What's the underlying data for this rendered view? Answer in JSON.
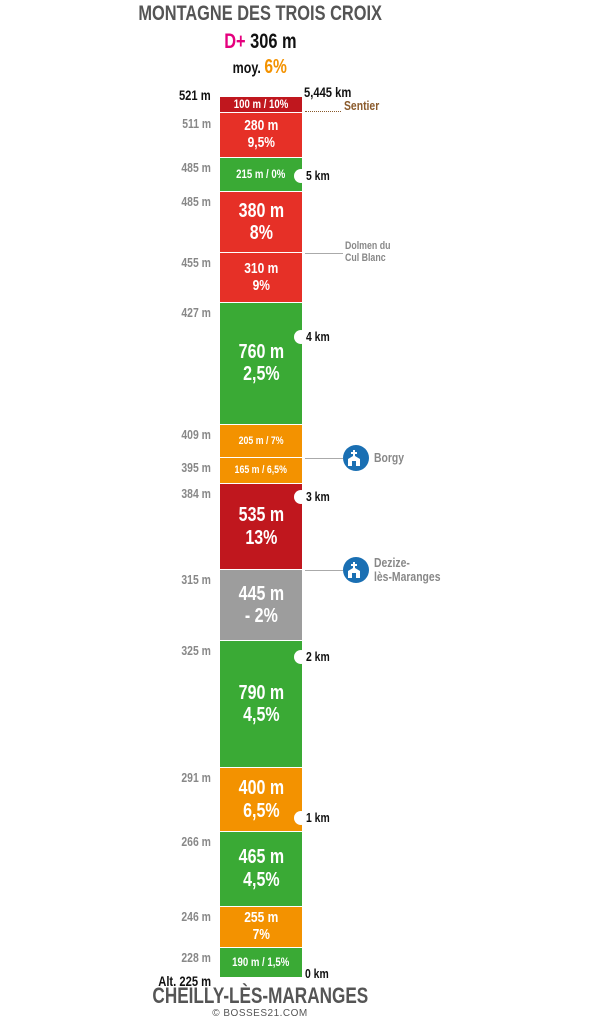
{
  "title": "MONTAGNE DES TROIS CROIX",
  "elevation_gain": {
    "label": "D+",
    "value": "306 m"
  },
  "average": {
    "label": "moy.",
    "value": "6%"
  },
  "colors": {
    "green": "#3aaa35",
    "orange": "#f39200",
    "red": "#e63027",
    "dark_red": "#c0171e",
    "grey": "#9d9d9d",
    "poi_blue": "#1a6fb3",
    "trail_brown": "#8a5a2b",
    "dplus_pink": "#e5007e"
  },
  "total_distance": "5,445 km",
  "trail_label": "Sentier",
  "start_name": "CHEILLY-LÈS-MARANGES",
  "copyright": "© BOSSES21.COM",
  "segments": [
    {
      "line1": "100 m / 10%",
      "line2": "",
      "length_m": 100,
      "color": "dark_red",
      "size": "small"
    },
    {
      "line1": "280 m",
      "line2": "9,5%",
      "length_m": 280,
      "color": "red",
      "size": "medium"
    },
    {
      "line1": "215 m / 0%",
      "line2": "",
      "length_m": 215,
      "color": "green",
      "size": "small"
    },
    {
      "line1": "380 m",
      "line2": "8%",
      "length_m": 380,
      "color": "red",
      "size": "large"
    },
    {
      "line1": "310 m",
      "line2": "9%",
      "length_m": 310,
      "color": "red",
      "size": "medium"
    },
    {
      "line1": "760 m",
      "line2": "2,5%",
      "length_m": 760,
      "color": "green",
      "size": "large"
    },
    {
      "line1": "205 m / 7%",
      "line2": "",
      "length_m": 205,
      "color": "orange",
      "size": "tiny"
    },
    {
      "line1": "165 m / 6,5%",
      "line2": "",
      "length_m": 165,
      "color": "orange",
      "size": "tiny"
    },
    {
      "line1": "535 m",
      "line2": "13%",
      "length_m": 535,
      "color": "dark_red",
      "size": "large"
    },
    {
      "line1": "445 m",
      "line2": "- 2%",
      "length_m": 445,
      "color": "grey",
      "size": "large"
    },
    {
      "line1": "790 m",
      "line2": "4,5%",
      "length_m": 790,
      "color": "green",
      "size": "large"
    },
    {
      "line1": "400 m",
      "line2": "6,5%",
      "length_m": 400,
      "color": "orange",
      "size": "large"
    },
    {
      "line1": "465 m",
      "line2": "4,5%",
      "length_m": 465,
      "color": "green",
      "size": "large"
    },
    {
      "line1": "255 m",
      "line2": "7%",
      "length_m": 255,
      "color": "orange",
      "size": "medium"
    },
    {
      "line1": "190 m / 1,5%",
      "line2": "",
      "length_m": 190,
      "color": "green",
      "size": "small"
    }
  ],
  "altitudes": [
    "521 m",
    "511 m",
    "485 m",
    "485 m",
    "455 m",
    "427 m",
    "409 m",
    "395 m",
    "384 m",
    "315 m",
    "325 m",
    "291 m",
    "266 m",
    "246 m",
    "228 m",
    "Alt. 225 m"
  ],
  "km_markers": [
    {
      "label": "5 km",
      "km": 5
    },
    {
      "label": "4 km",
      "km": 4
    },
    {
      "label": "3 km",
      "km": 3
    },
    {
      "label": "2 km",
      "km": 2
    },
    {
      "label": "1 km",
      "km": 1
    },
    {
      "label": "0 km",
      "km": 0
    }
  ],
  "pois": [
    {
      "label_lines": [
        "Dolmen du",
        "Cul Blanc"
      ],
      "boundary": 4,
      "icon": "",
      "icon_name": ""
    },
    {
      "label_lines": [
        "Borgy"
      ],
      "boundary": 7,
      "icon": "village",
      "icon_name": "church-icon"
    },
    {
      "label_lines": [
        "Dezize-",
        "lès-Maranges"
      ],
      "boundary": 9,
      "icon": "village",
      "icon_name": "church-icon"
    }
  ]
}
